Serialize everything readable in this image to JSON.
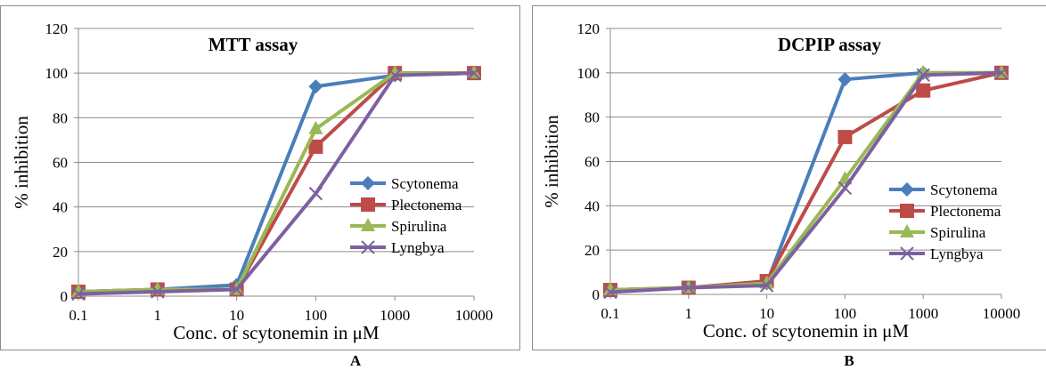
{
  "charts": [
    {
      "panel_label": "A",
      "chart_data": {
        "type": "line",
        "title": "MTT  assay",
        "xlabel": "Conc. of scytonemin in μM",
        "ylabel": "% inhibition",
        "x_scale": "log",
        "x": [
          0.1,
          1,
          10,
          100,
          1000,
          10000
        ],
        "x_tick_labels": [
          "0.1",
          "1",
          "10",
          "100",
          "1000",
          "10000"
        ],
        "ylim": [
          0,
          120
        ],
        "y_ticks": [
          0,
          20,
          40,
          60,
          80,
          100,
          120
        ],
        "grid": true,
        "legend_position": "right",
        "series": [
          {
            "name": "Scytonema",
            "color": "#4a7ebb",
            "marker": "diamond",
            "values": [
              2,
              3,
              5,
              94,
              99,
              100
            ]
          },
          {
            "name": "Plectonema",
            "color": "#be4b48",
            "marker": "square",
            "values": [
              2,
              3,
              3,
              67,
              100,
              100
            ]
          },
          {
            "name": "Spirulina",
            "color": "#98b954",
            "marker": "triangle",
            "values": [
              2,
              3,
              3,
              75,
              100,
              100
            ]
          },
          {
            "name": "Lyngbya",
            "color": "#7d60a0",
            "marker": "x",
            "values": [
              1,
              2,
              3,
              46,
              99,
              100
            ]
          }
        ]
      }
    },
    {
      "panel_label": "B",
      "chart_data": {
        "type": "line",
        "title": "DCPIP assay",
        "xlabel": "Conc. of scytonemin in μM",
        "ylabel": "% inhibition",
        "x_scale": "log",
        "x": [
          0.1,
          1,
          10,
          100,
          1000,
          10000
        ],
        "x_tick_labels": [
          "0.1",
          "1",
          "10",
          "100",
          "1000",
          "10000"
        ],
        "ylim": [
          0,
          120
        ],
        "y_ticks": [
          0,
          20,
          40,
          60,
          80,
          100,
          120
        ],
        "grid": true,
        "legend_position": "right",
        "series": [
          {
            "name": "Scytonema",
            "color": "#4a7ebb",
            "marker": "diamond",
            "values": [
              2,
              3,
              5,
              97,
              100,
              100
            ]
          },
          {
            "name": "Plectonema",
            "color": "#be4b48",
            "marker": "square",
            "values": [
              2,
              3,
              6,
              71,
              92,
              100
            ]
          },
          {
            "name": "Spirulina",
            "color": "#98b954",
            "marker": "triangle",
            "values": [
              2,
              3,
              5,
              52,
              100,
              100
            ]
          },
          {
            "name": "Lyngbya",
            "color": "#7d60a0",
            "marker": "x",
            "values": [
              1,
              3,
              4,
              48,
              99,
              100
            ]
          }
        ]
      }
    }
  ]
}
